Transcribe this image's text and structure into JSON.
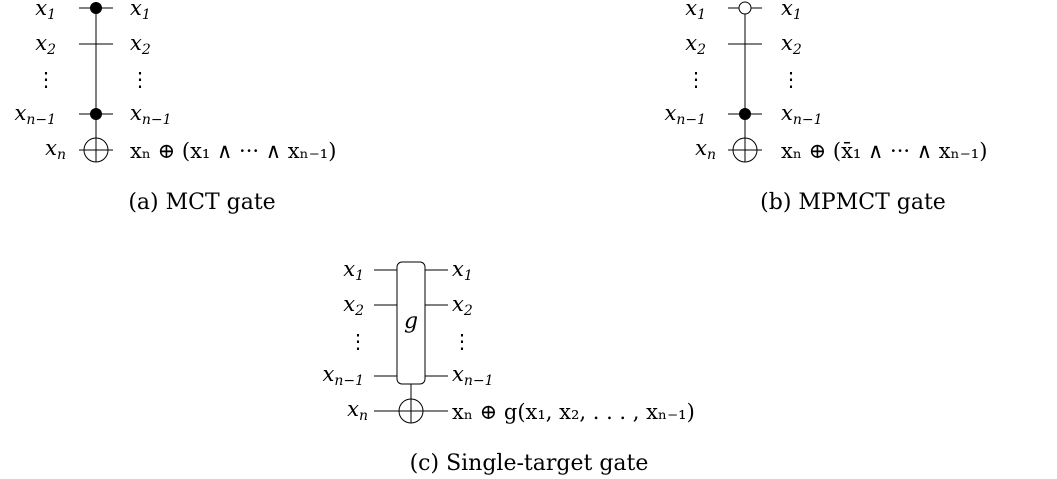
{
  "panels": {
    "a": {
      "caption": "(a) MCT gate",
      "inputs": [
        {
          "base": "x",
          "sub": "1"
        },
        {
          "base": "x",
          "sub": "2"
        },
        {
          "base": "⋮",
          "sub": ""
        },
        {
          "base": "x",
          "sub": "n−1"
        },
        {
          "base": "x",
          "sub": "n"
        }
      ],
      "outputs": [
        {
          "base": "x",
          "sub": "1"
        },
        {
          "base": "x",
          "sub": "2"
        },
        {
          "base": "⋮",
          "sub": ""
        },
        {
          "base": "x",
          "sub": "n−1"
        }
      ],
      "target_output": "xₙ ⊕ (x₁ ∧ ··· ∧ xₙ₋₁)",
      "controls": [
        "positive",
        "none",
        "positive"
      ]
    },
    "b": {
      "caption": "(b) MPMCT gate",
      "inputs": [
        {
          "base": "x",
          "sub": "1"
        },
        {
          "base": "x",
          "sub": "2"
        },
        {
          "base": "⋮",
          "sub": ""
        },
        {
          "base": "x",
          "sub": "n−1"
        },
        {
          "base": "x",
          "sub": "n"
        }
      ],
      "outputs": [
        {
          "base": "x",
          "sub": "1"
        },
        {
          "base": "x",
          "sub": "2"
        },
        {
          "base": "⋮",
          "sub": ""
        },
        {
          "base": "x",
          "sub": "n−1"
        }
      ],
      "target_output": "xₙ ⊕ (x̄₁ ∧ ··· ∧ xₙ₋₁)",
      "controls": [
        "negative",
        "none",
        "positive"
      ]
    },
    "c": {
      "caption": "(c) Single-target gate",
      "gate_label": "g",
      "inputs": [
        {
          "base": "x",
          "sub": "1"
        },
        {
          "base": "x",
          "sub": "2"
        },
        {
          "base": "⋮",
          "sub": ""
        },
        {
          "base": "x",
          "sub": "n−1"
        },
        {
          "base": "x",
          "sub": "n"
        }
      ],
      "outputs": [
        {
          "base": "x",
          "sub": "1"
        },
        {
          "base": "x",
          "sub": "2"
        },
        {
          "base": "⋮",
          "sub": ""
        },
        {
          "base": "x",
          "sub": "n−1"
        }
      ],
      "target_output": "xₙ ⊕ g(x₁, x₂, . . . , xₙ₋₁)"
    }
  }
}
